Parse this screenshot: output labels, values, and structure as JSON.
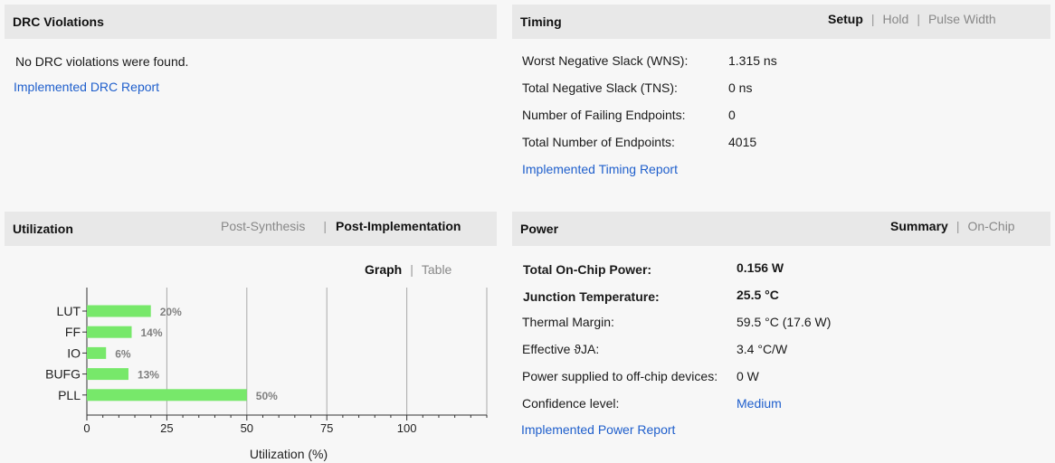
{
  "drc": {
    "title": "DRC Violations",
    "message": "No DRC violations were found.",
    "report_link": "Implemented DRC Report"
  },
  "timing": {
    "title": "Timing",
    "tabs": [
      "Setup",
      "Hold",
      "Pulse Width"
    ],
    "active_tab": "Setup",
    "rows": [
      {
        "label": "Worst Negative Slack (WNS):",
        "value": "1.315 ns"
      },
      {
        "label": "Total Negative Slack (TNS):",
        "value": "0 ns"
      },
      {
        "label": "Number of Failing Endpoints:",
        "value": "0"
      },
      {
        "label": "Total Number of Endpoints:",
        "value": "4015"
      }
    ],
    "report_link": "Implemented Timing Report"
  },
  "utilization": {
    "title": "Utilization",
    "tabs": [
      "Post-Synthesis",
      "Post-Implementation"
    ],
    "active_tab": "Post-Implementation",
    "view_tabs": [
      "Graph",
      "Table"
    ],
    "active_view": "Graph"
  },
  "power": {
    "title": "Power",
    "tabs": [
      "Summary",
      "On-Chip"
    ],
    "active_tab": "Summary",
    "rows": [
      {
        "label": "Total On-Chip Power:",
        "value": "0.156 W",
        "bold": true
      },
      {
        "label": "Junction Temperature:",
        "value": "25.5 °C",
        "bold": true
      },
      {
        "label": "Thermal Margin:",
        "value": "59.5 °C (17.6 W)"
      },
      {
        "label": "Effective ϑJA:",
        "value": "3.4 °C/W"
      },
      {
        "label": "Power supplied to off-chip devices:",
        "value": "0 W"
      },
      {
        "label": "Confidence level:",
        "value": "Medium",
        "link": true
      }
    ],
    "report_link": "Implemented Power Report"
  },
  "colors": {
    "bar": "#77e86a",
    "link": "#1f5fcc",
    "header_bg": "#e8e8e8"
  },
  "chart_data": {
    "type": "bar",
    "orientation": "horizontal",
    "categories": [
      "LUT",
      "FF",
      "IO",
      "BUFG",
      "PLL"
    ],
    "values": [
      20,
      14,
      6,
      13,
      50
    ],
    "value_labels": [
      "20%",
      "14%",
      "6%",
      "13%",
      "50%"
    ],
    "xlabel": "Utilization (%)",
    "xticks": [
      0,
      25,
      50,
      75,
      100
    ],
    "xlim": [
      0,
      125
    ],
    "grid": true
  }
}
